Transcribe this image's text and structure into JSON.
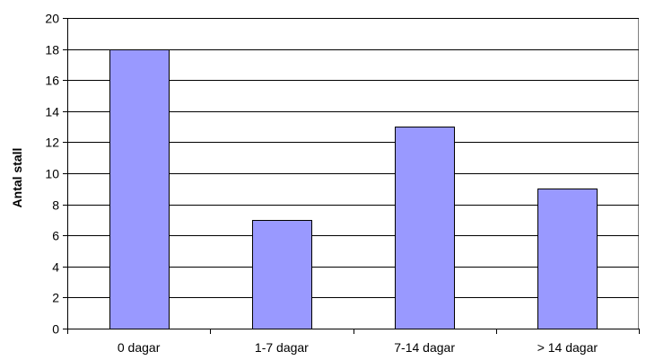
{
  "chart_data": {
    "type": "bar",
    "title": "",
    "xlabel": "",
    "ylabel": "Antal stall",
    "categories": [
      "0 dagar",
      "1-7 dagar",
      "7-14 dagar",
      "> 14 dagar"
    ],
    "values": [
      18,
      7,
      13,
      9
    ],
    "ylim": [
      0,
      20
    ],
    "yticks": [
      0,
      2,
      4,
      6,
      8,
      10,
      12,
      14,
      16,
      18,
      20
    ],
    "grid": true,
    "legend": "none",
    "colors": {
      "bar_fill": "#9999ff",
      "bar_stroke": "#000000",
      "grid": "#000000",
      "axis": "#000000",
      "plot_border": "#808080"
    }
  }
}
